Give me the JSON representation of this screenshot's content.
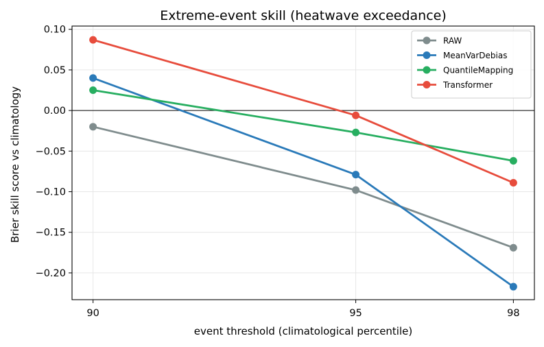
{
  "chart_data": {
    "type": "line",
    "title": "Extreme-event skill (heatwave exceedance)",
    "xlabel": "event threshold (climatological percentile)",
    "ylabel": "Brier skill score vs climatology",
    "x": [
      90,
      95,
      98
    ],
    "x_ticks": [
      90,
      95,
      98
    ],
    "xlim": [
      89.6,
      98.4
    ],
    "ylim": [
      -0.233,
      0.104
    ],
    "y_ticks": [
      0.1,
      0.05,
      0.0,
      -0.05,
      -0.1,
      -0.15,
      -0.2
    ],
    "y_tick_labels": [
      "0.10",
      "0.05",
      "0.00",
      "−0.05",
      "−0.10",
      "−0.15",
      "−0.20"
    ],
    "reference_line": 0,
    "grid": true,
    "legend_position": "upper right",
    "series": [
      {
        "name": "RAW",
        "color": "#7f8c8d",
        "values": [
          -0.02,
          -0.098,
          -0.169
        ]
      },
      {
        "name": "MeanVarDebias",
        "color": "#2a7ab9",
        "values": [
          0.04,
          -0.079,
          -0.217
        ]
      },
      {
        "name": "QuantileMapping",
        "color": "#27ae60",
        "values": [
          0.025,
          -0.027,
          -0.062
        ]
      },
      {
        "name": "Transformer",
        "color": "#e74c3c",
        "values": [
          0.087,
          -0.006,
          -0.089
        ]
      }
    ]
  }
}
